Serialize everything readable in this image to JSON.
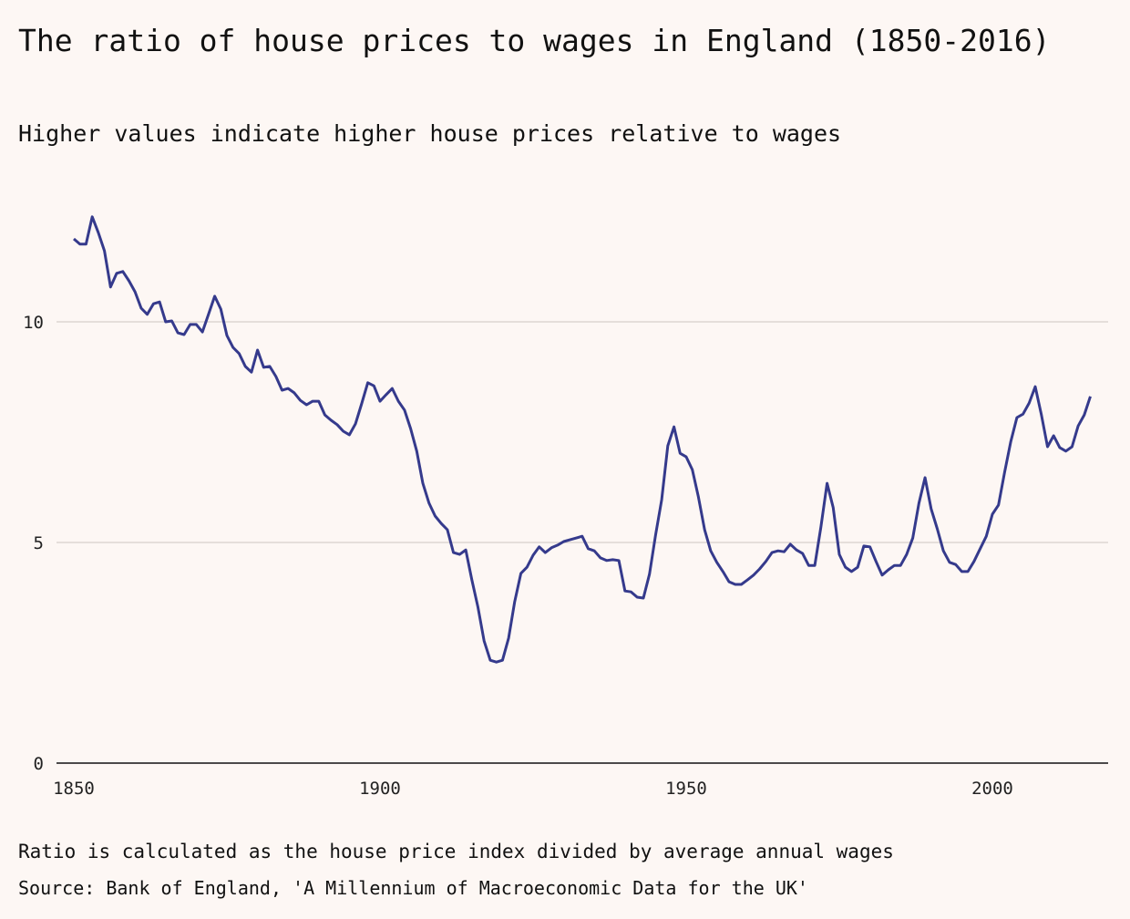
{
  "chart_data": {
    "type": "line",
    "title": "The ratio of house prices to wages in England (1850-2016)",
    "subtitle": "Higher values indicate higher house prices relative to wages",
    "xlabel": "",
    "ylabel": "",
    "xlim": [
      1850,
      2016
    ],
    "ylim": [
      0,
      12.5
    ],
    "x_ticks": [
      1850,
      1900,
      1950,
      2000
    ],
    "y_ticks": [
      0,
      5,
      10
    ],
    "grid": "horizontal",
    "line_color": "#353a8c",
    "x": [
      1850,
      1851,
      1852,
      1853,
      1854,
      1855,
      1856,
      1857,
      1858,
      1859,
      1860,
      1861,
      1862,
      1863,
      1864,
      1865,
      1866,
      1867,
      1868,
      1869,
      1870,
      1871,
      1872,
      1873,
      1874,
      1875,
      1876,
      1877,
      1878,
      1879,
      1880,
      1881,
      1882,
      1883,
      1884,
      1885,
      1886,
      1887,
      1888,
      1889,
      1890,
      1891,
      1892,
      1893,
      1894,
      1895,
      1896,
      1897,
      1898,
      1899,
      1900,
      1901,
      1902,
      1903,
      1904,
      1905,
      1906,
      1907,
      1908,
      1909,
      1910,
      1911,
      1912,
      1913,
      1914,
      1915,
      1916,
      1917,
      1918,
      1919,
      1920,
      1921,
      1922,
      1923,
      1924,
      1925,
      1926,
      1927,
      1928,
      1929,
      1930,
      1931,
      1932,
      1933,
      1934,
      1935,
      1936,
      1937,
      1938,
      1939,
      1940,
      1941,
      1942,
      1943,
      1944,
      1945,
      1946,
      1947,
      1948,
      1949,
      1950,
      1951,
      1952,
      1953,
      1954,
      1955,
      1956,
      1957,
      1958,
      1959,
      1960,
      1961,
      1962,
      1963,
      1964,
      1965,
      1966,
      1967,
      1968,
      1969,
      1970,
      1971,
      1972,
      1973,
      1974,
      1975,
      1976,
      1977,
      1978,
      1979,
      1980,
      1981,
      1982,
      1983,
      1984,
      1985,
      1986,
      1987,
      1988,
      1989,
      1990,
      1991,
      1992,
      1993,
      1994,
      1995,
      1996,
      1997,
      1998,
      1999,
      2000,
      2001,
      2002,
      2003,
      2004,
      2005,
      2006,
      2007,
      2008,
      2009,
      2010,
      2011,
      2012,
      2013,
      2014,
      2015,
      2016
    ],
    "values": [
      11.88,
      11.76,
      11.76,
      12.38,
      12.02,
      11.61,
      10.79,
      11.1,
      11.14,
      10.93,
      10.68,
      10.31,
      10.17,
      10.41,
      10.45,
      10.0,
      10.02,
      9.75,
      9.71,
      9.94,
      9.94,
      9.77,
      10.17,
      10.58,
      10.29,
      9.69,
      9.42,
      9.28,
      8.99,
      8.86,
      9.36,
      8.97,
      8.99,
      8.76,
      8.45,
      8.49,
      8.39,
      8.22,
      8.12,
      8.2,
      8.2,
      7.89,
      7.77,
      7.67,
      7.52,
      7.44,
      7.69,
      8.14,
      8.62,
      8.55,
      8.2,
      8.35,
      8.49,
      8.2,
      8.0,
      7.58,
      7.07,
      6.34,
      5.89,
      5.6,
      5.43,
      5.29,
      4.77,
      4.73,
      4.83,
      4.15,
      3.53,
      2.77,
      2.33,
      2.29,
      2.33,
      2.83,
      3.66,
      4.3,
      4.44,
      4.71,
      4.9,
      4.77,
      4.88,
      4.94,
      5.02,
      5.06,
      5.1,
      5.14,
      4.86,
      4.81,
      4.65,
      4.59,
      4.61,
      4.59,
      3.9,
      3.88,
      3.76,
      3.74,
      4.28,
      5.17,
      5.97,
      7.19,
      7.62,
      7.02,
      6.94,
      6.65,
      6.03,
      5.29,
      4.81,
      4.55,
      4.34,
      4.11,
      4.05,
      4.05,
      4.15,
      4.26,
      4.4,
      4.57,
      4.77,
      4.81,
      4.79,
      4.96,
      4.83,
      4.75,
      4.48,
      4.48,
      5.35,
      6.34,
      5.79,
      4.73,
      4.44,
      4.34,
      4.44,
      4.92,
      4.9,
      4.57,
      4.26,
      4.38,
      4.48,
      4.48,
      4.73,
      5.1,
      5.89,
      6.47,
      5.76,
      5.31,
      4.81,
      4.55,
      4.5,
      4.34,
      4.34,
      4.57,
      4.86,
      5.14,
      5.64,
      5.85,
      6.59,
      7.29,
      7.83,
      7.91,
      8.16,
      8.53,
      7.89,
      7.17,
      7.42,
      7.15,
      7.07,
      7.17,
      7.64,
      7.89,
      8.31
    ],
    "note": "Ratio is calculated as the house price index divided by average annual wages",
    "source": "Source: Bank of England, 'A Millennium of Macroeconomic Data for the UK'"
  }
}
